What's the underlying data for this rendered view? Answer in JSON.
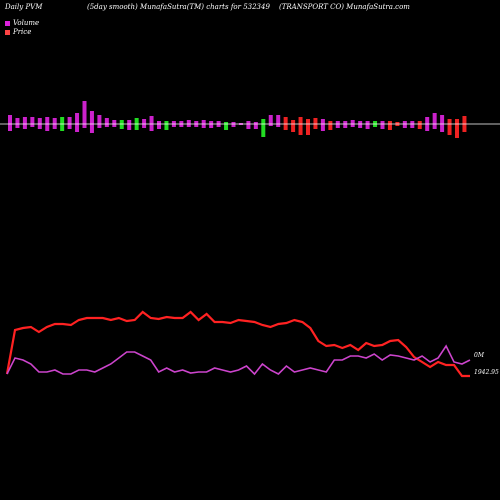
{
  "header": {
    "left": "Daily PVM",
    "middle": "(5day smooth) MunafaSutra(TM) charts for 532349",
    "right": "(TRANSPORT CO) MunafaSutra.com"
  },
  "legend": {
    "volume": {
      "label": "Volume",
      "color": "#dd22dd"
    },
    "price": {
      "label": "Price",
      "color": "#ff4444"
    }
  },
  "chart_data": {
    "type": "bar",
    "colors": {
      "volume_up": "#cc22cc",
      "volume_down_green": "#22dd22",
      "volume_red": "#ee2222",
      "price_line": "#ff2222",
      "volume_line": "#cc44cc",
      "zero_line": "#ffffff"
    },
    "volume_bars": [
      {
        "up": 9,
        "down": 7,
        "c": "m"
      },
      {
        "up": 6,
        "down": 4,
        "c": "m"
      },
      {
        "up": 7,
        "down": 5,
        "c": "m"
      },
      {
        "up": 7,
        "down": 3,
        "c": "m"
      },
      {
        "up": 6,
        "down": 5,
        "c": "m"
      },
      {
        "up": 7,
        "down": 7,
        "c": "m"
      },
      {
        "up": 6,
        "down": 5,
        "c": "m"
      },
      {
        "up": 7,
        "down": 7,
        "c": "g"
      },
      {
        "up": 7,
        "down": 5,
        "c": "m"
      },
      {
        "up": 11,
        "down": 8,
        "c": "m"
      },
      {
        "up": 23,
        "down": 4,
        "c": "m"
      },
      {
        "up": 13,
        "down": 9,
        "c": "m"
      },
      {
        "up": 9,
        "down": 4,
        "c": "m"
      },
      {
        "up": 6,
        "down": 3,
        "c": "m"
      },
      {
        "up": 4,
        "down": 3,
        "c": "m"
      },
      {
        "up": 4,
        "down": 5,
        "c": "g"
      },
      {
        "up": 4,
        "down": 6,
        "c": "m"
      },
      {
        "up": 6,
        "down": 6,
        "c": "g"
      },
      {
        "up": 5,
        "down": 4,
        "c": "m"
      },
      {
        "up": 8,
        "down": 7,
        "c": "m"
      },
      {
        "up": 3,
        "down": 5,
        "c": "m"
      },
      {
        "up": 3,
        "down": 6,
        "c": "g"
      },
      {
        "up": 3,
        "down": 3,
        "c": "m"
      },
      {
        "up": 3,
        "down": 3,
        "c": "m"
      },
      {
        "up": 4,
        "down": 3,
        "c": "m"
      },
      {
        "up": 3,
        "down": 3,
        "c": "m"
      },
      {
        "up": 4,
        "down": 4,
        "c": "m"
      },
      {
        "up": 3,
        "down": 4,
        "c": "m"
      },
      {
        "up": 3,
        "down": 3,
        "c": "m"
      },
      {
        "up": 2,
        "down": 6,
        "c": "g"
      },
      {
        "up": 2,
        "down": 3,
        "c": "m"
      },
      {
        "up": 1,
        "down": 1,
        "c": "m"
      },
      {
        "up": 3,
        "down": 5,
        "c": "m"
      },
      {
        "up": 2,
        "down": 5,
        "c": "m"
      },
      {
        "up": 5,
        "down": 13,
        "c": "g"
      },
      {
        "up": 9,
        "down": 2,
        "c": "m"
      },
      {
        "up": 9,
        "down": 3,
        "c": "m"
      },
      {
        "up": 7,
        "down": 6,
        "c": "r"
      },
      {
        "up": 4,
        "down": 8,
        "c": "r"
      },
      {
        "up": 7,
        "down": 11,
        "c": "r"
      },
      {
        "up": 5,
        "down": 11,
        "c": "r"
      },
      {
        "up": 6,
        "down": 5,
        "c": "r"
      },
      {
        "up": 5,
        "down": 7,
        "c": "m"
      },
      {
        "up": 3,
        "down": 6,
        "c": "r"
      },
      {
        "up": 3,
        "down": 4,
        "c": "m"
      },
      {
        "up": 3,
        "down": 4,
        "c": "m"
      },
      {
        "up": 4,
        "down": 3,
        "c": "m"
      },
      {
        "up": 3,
        "down": 4,
        "c": "m"
      },
      {
        "up": 3,
        "down": 5,
        "c": "m"
      },
      {
        "up": 3,
        "down": 3,
        "c": "g"
      },
      {
        "up": 3,
        "down": 5,
        "c": "m"
      },
      {
        "up": 3,
        "down": 6,
        "c": "r"
      },
      {
        "up": 2,
        "down": 2,
        "c": "r"
      },
      {
        "up": 3,
        "down": 4,
        "c": "m"
      },
      {
        "up": 3,
        "down": 4,
        "c": "m"
      },
      {
        "up": 3,
        "down": 5,
        "c": "r"
      },
      {
        "up": 7,
        "down": 7,
        "c": "m"
      },
      {
        "up": 11,
        "down": 5,
        "c": "m"
      },
      {
        "up": 9,
        "down": 8,
        "c": "m"
      },
      {
        "up": 5,
        "down": 11,
        "c": "r"
      },
      {
        "up": 5,
        "down": 14,
        "c": "r"
      },
      {
        "up": 8,
        "down": 8,
        "c": "r"
      }
    ],
    "price_line": [
      374,
      330,
      328,
      327,
      332,
      327,
      324,
      324,
      325,
      320,
      318,
      318,
      318,
      320,
      318,
      321,
      320,
      312,
      318,
      319,
      317,
      318,
      318,
      312,
      320,
      314,
      322,
      322,
      323,
      320,
      321,
      322,
      325,
      327,
      324,
      323,
      320,
      322,
      328,
      341,
      346,
      345,
      348,
      345,
      350,
      343,
      346,
      345,
      341,
      340,
      347,
      357,
      362,
      367,
      362,
      365,
      365,
      376,
      376
    ],
    "volume_line": [
      374,
      358,
      360,
      364,
      372,
      372,
      370,
      374,
      374,
      370,
      370,
      372,
      368,
      364,
      358,
      352,
      352,
      356,
      360,
      372,
      368,
      372,
      370,
      373,
      372,
      372,
      368,
      370,
      372,
      370,
      366,
      374,
      364,
      370,
      374,
      366,
      372,
      370,
      368,
      370,
      372,
      360,
      360,
      356,
      356,
      358,
      354,
      360,
      355,
      356,
      358,
      360,
      356,
      362,
      358,
      346,
      362,
      364,
      360
    ],
    "price_label": "1942.95",
    "volume_label": "0M",
    "zero_line_value": 0
  }
}
